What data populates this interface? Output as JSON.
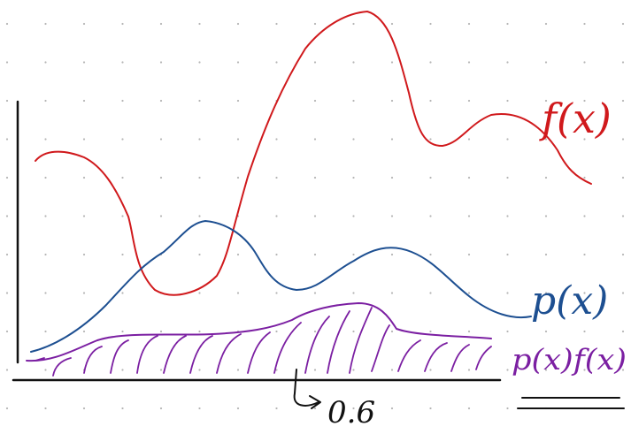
{
  "labels": {
    "f": "f(x)",
    "p": "p(x)",
    "product": "p(x)f(x)",
    "note": "0.6"
  }
}
